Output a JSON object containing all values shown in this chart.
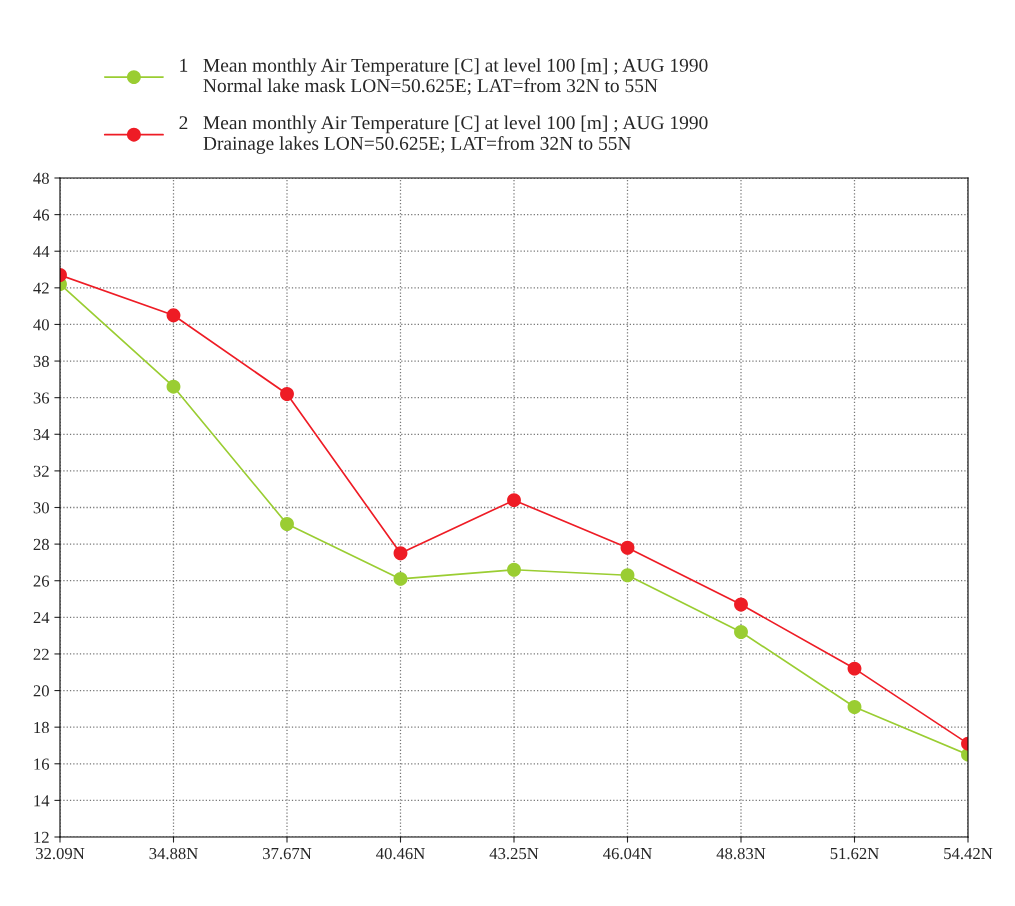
{
  "chart_data": {
    "type": "line",
    "categories": [
      "32.09N",
      "34.88N",
      "37.67N",
      "40.46N",
      "43.25N",
      "46.04N",
      "48.83N",
      "51.62N",
      "54.42N"
    ],
    "series": [
      {
        "name": "1   Mean monthly Air Temperature [C] at level 100 [m] ; AUG 1990\n     Normal lake mask LON=50.625E; LAT=from 32N to 55N",
        "color": "#9acd32",
        "values": [
          42.2,
          36.6,
          29.1,
          26.1,
          26.6,
          26.3,
          23.2,
          19.1,
          16.5
        ]
      },
      {
        "name": "2   Mean monthly Air Temperature [C] at level 100 [m] ; AUG 1990\n     Drainage lakes LON=50.625E; LAT=from 32N to 55N",
        "color": "#ee1c25",
        "values": [
          42.7,
          40.5,
          36.2,
          27.5,
          30.4,
          27.8,
          24.7,
          21.2,
          17.1
        ]
      }
    ],
    "ylim": [
      12,
      48
    ],
    "yticks": [
      12,
      14,
      16,
      18,
      20,
      22,
      24,
      26,
      28,
      30,
      32,
      34,
      36,
      38,
      40,
      42,
      44,
      46,
      48
    ],
    "grid": true,
    "legend": "top left",
    "marker": "circle",
    "line_style": "solid"
  }
}
